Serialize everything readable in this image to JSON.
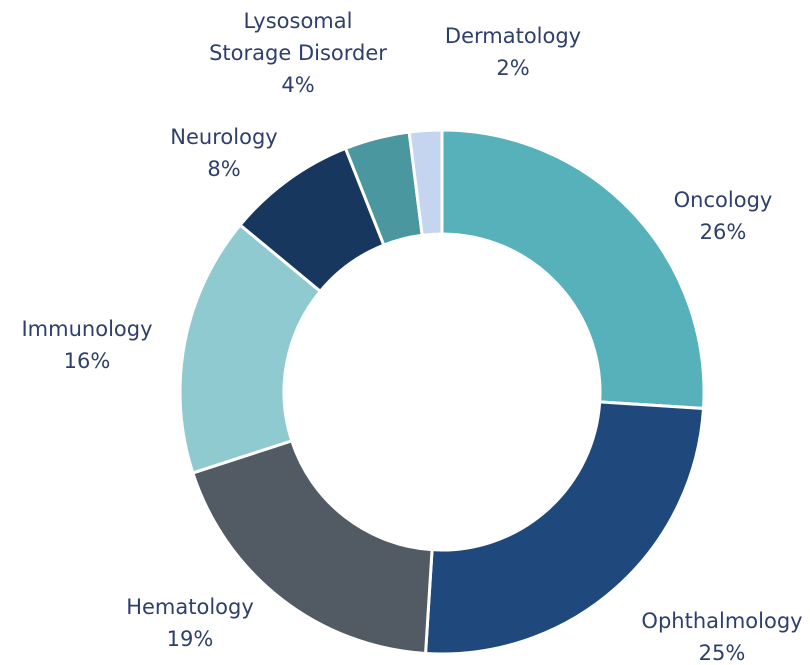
{
  "chart_data": {
    "type": "donut",
    "categories": [
      "Oncology",
      "Ophthalmology",
      "Hematology",
      "Immunology",
      "Neurology",
      "Lysosomal\nStorage Disorder",
      "Dermatology"
    ],
    "values": [
      26,
      25,
      19,
      16,
      8,
      4,
      2
    ],
    "value_labels": [
      "26%",
      "25%",
      "19%",
      "16%",
      "8%",
      "4%",
      "2%"
    ],
    "colors": [
      "#56b1ba",
      "#1f497d",
      "#525a63",
      "#8ecad0",
      "#17375e",
      "#4a97a0",
      "#c5d5ef"
    ]
  }
}
